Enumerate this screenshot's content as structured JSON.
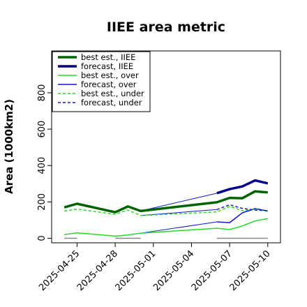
{
  "chart_data": {
    "type": "line",
    "title": "IIEE area metric",
    "xlabel": "",
    "ylabel": "Area (1000km2)",
    "xlim": [
      "2025-04-23",
      "2025-05-11"
    ],
    "ylim": [
      -25,
      1030
    ],
    "yticks": [
      0,
      200,
      400,
      600,
      800
    ],
    "xticks": [
      {
        "date": "2025-04-25",
        "label": "2025-04-25",
        "color": "#000000"
      },
      {
        "date": "2025-04-28",
        "label": "2025-04-28",
        "color": "#000000"
      },
      {
        "date": "2025-05-01",
        "label": "2025-05-01",
        "color": "#228B22"
      },
      {
        "date": "2025-05-04",
        "label": "2025-05-04",
        "color": "#000000"
      },
      {
        "date": "2025-05-07",
        "label": "2025-05-07",
        "color": "#000000"
      },
      {
        "date": "2025-05-10",
        "label": "2025-05-10",
        "color": "#000000"
      }
    ],
    "legend_position": "top-left",
    "series": [
      {
        "name": "best est., IIEE",
        "color": "#006400",
        "style": "solid",
        "width": 3.5,
        "x": [
          "2025-04-24",
          "2025-04-25",
          "2025-04-28",
          "2025-04-29",
          "2025-04-30",
          "2025-05-06",
          "2025-05-07",
          "2025-05-08",
          "2025-05-09",
          "2025-05-10"
        ],
        "y": [
          170,
          190,
          143,
          175,
          150,
          198,
          222,
          220,
          258,
          252
        ]
      },
      {
        "name": "forecast, IIEE",
        "color": "#00008B",
        "style": "solid",
        "width": 3.5,
        "x": [
          "2025-05-06",
          "2025-05-07",
          "2025-05-08",
          "2025-05-09",
          "2025-05-10"
        ],
        "y": [
          248,
          270,
          285,
          318,
          302
        ]
      },
      {
        "name": "best est., over",
        "color": "#22DD22",
        "style": "solid",
        "width": 1.5,
        "x": [
          "2025-04-24",
          "2025-04-25",
          "2025-04-28",
          "2025-04-29",
          "2025-04-30",
          "2025-05-06",
          "2025-05-07",
          "2025-05-08",
          "2025-05-09",
          "2025-05-10"
        ],
        "y": [
          20,
          30,
          12,
          18,
          28,
          55,
          48,
          68,
          95,
          108
        ]
      },
      {
        "name": "forecast, over",
        "color": "#1515CC",
        "style": "solid",
        "width": 1.5,
        "x": [
          "2025-05-06",
          "2025-05-07",
          "2025-05-08",
          "2025-05-09",
          "2025-05-10"
        ],
        "y": [
          90,
          86,
          140,
          163,
          150
        ]
      },
      {
        "name": "best est., under",
        "color": "#22DD22",
        "style": "dashed",
        "width": 1.5,
        "x": [
          "2025-04-24",
          "2025-04-25",
          "2025-04-28",
          "2025-04-29",
          "2025-04-30",
          "2025-05-06",
          "2025-05-07",
          "2025-05-08",
          "2025-05-09",
          "2025-05-10"
        ],
        "y": [
          150,
          160,
          132,
          155,
          125,
          145,
          175,
          152,
          160,
          148
        ]
      },
      {
        "name": "forecast, under",
        "color": "#1515CC",
        "style": "dashed",
        "width": 1.5,
        "x": [
          "2025-05-06",
          "2025-05-07",
          "2025-05-08",
          "2025-05-09",
          "2025-05-10"
        ],
        "y": [
          158,
          184,
          164,
          155,
          152
        ]
      }
    ],
    "connectors": [
      {
        "color": "#1515CC",
        "width": 1,
        "from": [
          "2025-04-30",
          150
        ],
        "to": [
          "2025-05-06",
          248
        ]
      },
      {
        "color": "#1515CC",
        "width": 1,
        "from": [
          "2025-04-30",
          28
        ],
        "to": [
          "2025-05-06",
          90
        ]
      },
      {
        "color": "#1515CC",
        "width": 1,
        "from": [
          "2025-04-30",
          125
        ],
        "to": [
          "2025-05-06",
          158
        ]
      }
    ],
    "baseline_segments": [
      {
        "color": "#888888",
        "from": "2025-04-24",
        "to": "2025-04-25",
        "y": 0
      },
      {
        "color": "#888888",
        "from": "2025-04-28",
        "to": "2025-04-30",
        "y": 0
      },
      {
        "color": "#888888",
        "from": "2025-05-06",
        "to": "2025-05-10",
        "y": 0
      }
    ]
  }
}
